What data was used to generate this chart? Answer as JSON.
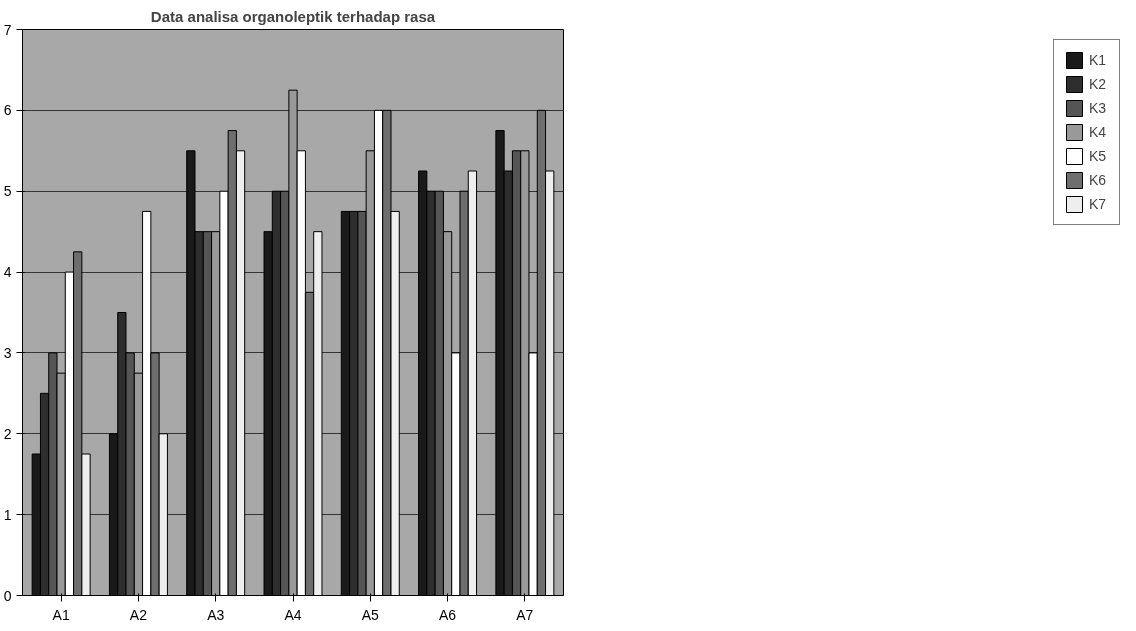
{
  "chart_data": {
    "type": "bar",
    "title": "Data analisa organoleptik terhadap rasa",
    "categories": [
      "A1",
      "A2",
      "A3",
      "A4",
      "A5",
      "A6",
      "A7"
    ],
    "series": [
      {
        "name": "K1",
        "color": "#1a1a1a",
        "values": [
          1.75,
          2,
          5.5,
          4.5,
          4.75,
          5.25,
          5.75
        ]
      },
      {
        "name": "K2",
        "color": "#2e2e2e",
        "values": [
          2.5,
          3.5,
          4.5,
          5,
          4.75,
          5,
          5.25
        ]
      },
      {
        "name": "K3",
        "color": "#555555",
        "values": [
          3,
          3,
          4.5,
          5,
          4.75,
          5,
          5.5
        ]
      },
      {
        "name": "K4",
        "color": "#999999",
        "values": [
          2.75,
          2.75,
          4.5,
          6.25,
          5.5,
          4.5,
          5.5
        ]
      },
      {
        "name": "K5",
        "color": "#ffffff",
        "values": [
          4,
          4.75,
          5,
          5.5,
          6,
          3,
          3
        ]
      },
      {
        "name": "K6",
        "color": "#6e6e6e",
        "values": [
          4.25,
          3,
          5.75,
          3.75,
          6,
          5,
          6
        ]
      },
      {
        "name": "K7",
        "color": "#eeeeee",
        "values": [
          1.75,
          2,
          5.5,
          4.5,
          4.75,
          5.25,
          5.25
        ]
      }
    ],
    "ylim": [
      0,
      7
    ],
    "yticks": [
      0,
      1,
      2,
      3,
      4,
      5,
      6,
      7
    ],
    "grid": "y",
    "legend": "right"
  }
}
